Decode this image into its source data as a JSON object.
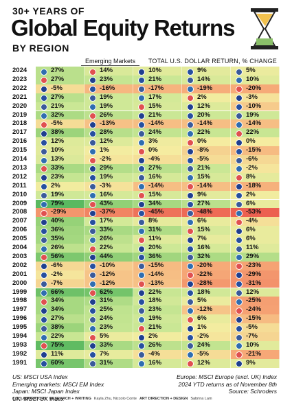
{
  "header": {
    "kicker": "30+ YEARS OF",
    "title": "Global Equity Returns",
    "subtitle": "BY REGION"
  },
  "table": {
    "column_label": "Emerging Markets",
    "note": "TOTAL U.S. DOLLAR RETURN, % CHANGE",
    "rows": [
      [
        "2024",
        "27%",
        "14%",
        "10%",
        "9%",
        "5%"
      ],
      [
        "2023",
        "27%",
        "23%",
        "21%",
        "14%",
        "10%"
      ],
      [
        "2022",
        "-5%",
        "-16%",
        "-17%",
        "-19%",
        "-20%"
      ],
      [
        "2021",
        "27%",
        "19%",
        "17%",
        "2%",
        "-3%"
      ],
      [
        "2020",
        "21%",
        "19%",
        "15%",
        "12%",
        "-10%"
      ],
      [
        "2019",
        "32%",
        "26%",
        "21%",
        "20%",
        "19%"
      ],
      [
        "2018",
        "-5%",
        "-13%",
        "-14%",
        "-14%",
        "-14%"
      ],
      [
        "2017",
        "38%",
        "28%",
        "24%",
        "22%",
        "22%"
      ],
      [
        "2016",
        "12%",
        "12%",
        "3%",
        "0%",
        "0%"
      ],
      [
        "2015",
        "10%",
        "1%",
        "0%",
        "-8%",
        "-15%"
      ],
      [
        "2014",
        "13%",
        "-2%",
        "-4%",
        "-5%",
        "-6%"
      ],
      [
        "2013",
        "33%",
        "29%",
        "27%",
        "21%",
        "-2%"
      ],
      [
        "2012",
        "23%",
        "19%",
        "16%",
        "15%",
        "8%"
      ],
      [
        "2011",
        "2%",
        "-3%",
        "-14%",
        "-14%",
        "-18%"
      ],
      [
        "2010",
        "19%",
        "16%",
        "15%",
        "9%",
        "2%"
      ],
      [
        "2009",
        "79%",
        "43%",
        "34%",
        "27%",
        "6%"
      ],
      [
        "2008",
        "-29%",
        "-37%",
        "-45%",
        "-48%",
        "-53%"
      ],
      [
        "2007",
        "40%",
        "17%",
        "8%",
        "6%",
        "-4%"
      ],
      [
        "2006",
        "36%",
        "33%",
        "31%",
        "15%",
        "6%"
      ],
      [
        "2005",
        "35%",
        "26%",
        "11%",
        "7%",
        "6%"
      ],
      [
        "2004",
        "26%",
        "22%",
        "20%",
        "16%",
        "11%"
      ],
      [
        "2003",
        "56%",
        "44%",
        "36%",
        "32%",
        "29%"
      ],
      [
        "2002",
        "-6%",
        "-10%",
        "-15%",
        "-20%",
        "-23%"
      ],
      [
        "2001",
        "-2%",
        "-12%",
        "-14%",
        "-22%",
        "-29%"
      ],
      [
        "2000",
        "-7%",
        "-12%",
        "-13%",
        "-28%",
        "-31%"
      ],
      [
        "1999",
        "66%",
        "62%",
        "22%",
        "18%",
        "12%"
      ],
      [
        "1998",
        "34%",
        "31%",
        "18%",
        "5%",
        "-25%"
      ],
      [
        "1997",
        "34%",
        "25%",
        "23%",
        "-12%",
        "-24%"
      ],
      [
        "1996",
        "27%",
        "24%",
        "19%",
        "6%",
        "-15%"
      ],
      [
        "1995",
        "38%",
        "23%",
        "21%",
        "1%",
        "-5%"
      ],
      [
        "1994",
        "22%",
        "5%",
        "2%",
        "-2%",
        "-7%"
      ],
      [
        "1993",
        "75%",
        "33%",
        "26%",
        "24%",
        "10%"
      ],
      [
        "1992",
        "11%",
        "7%",
        "-4%",
        "-5%",
        "-21%"
      ],
      [
        "1991",
        "60%",
        "31%",
        "16%",
        "12%",
        "9%"
      ]
    ]
  },
  "legend": {
    "left": [
      "US: MSCI USA Index",
      "Emerging markets: MSCI EM Index",
      "Japan: MSCI Japan Index",
      "UK: MSCI UK Index"
    ],
    "right": [
      "Europe: MSCI Europe (excl. UK) Index",
      "2024 YTD returns as of November 8th",
      "Source: Schroders"
    ]
  },
  "credits": [
    "COLLABORATORS",
    "RESEARCH + WRITING",
    "Kayla Zhu, Niccolo Conte",
    "ART DIRECTION + DESIGN",
    "Sabrina Lam"
  ]
}
